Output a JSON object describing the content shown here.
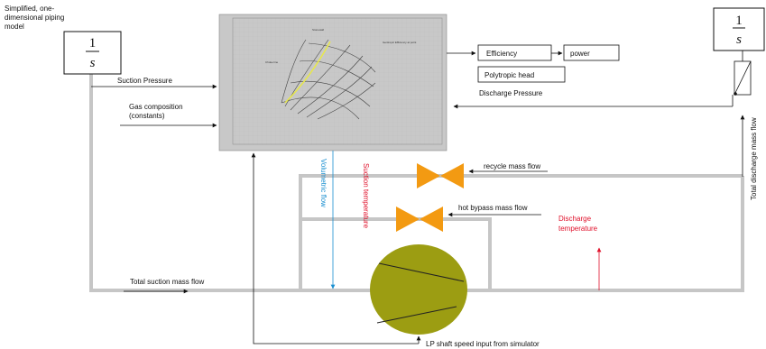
{
  "model_label": [
    "Simplified, one-",
    "dimensional piping",
    "model"
  ],
  "integrator_left": {
    "numerator": "1",
    "denominator": "s"
  },
  "integrator_right": {
    "numerator": "1",
    "denominator": "s"
  },
  "signals": {
    "suction_pressure": "Suction Pressure",
    "gas_composition": [
      "Gas composition",
      "(constants)"
    ],
    "discharge_pressure": "Discharge Pressure",
    "total_discharge_mass_flow": "Total discharge mass flow",
    "recycle_mass_flow": "recycle mass flow",
    "hot_bypass_mass_flow": "hot bypass mass flow",
    "discharge_temperature": [
      "Discharge",
      "temperature"
    ],
    "volumetric_flow": "Volumetric flow",
    "suction_temperature": "Suction temperature",
    "total_suction_mass_flow": "Total suction mass flow",
    "lp_shaft_speed": "LP shaft speed input  from simulator"
  },
  "outputs": {
    "efficiency": "Efficiency",
    "power": "power",
    "polytropic_head": "Polytropic head"
  },
  "colors": {
    "pipe": "#c6c6c6",
    "valve": "#f39a12",
    "compressor": "#9c9d12",
    "discharge_temp": "#e0102a",
    "volumetric_flow": "#1a8fd0"
  }
}
